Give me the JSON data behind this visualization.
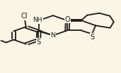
{
  "bg_color": "#faf5e4",
  "bond_color": "#1a1a1a",
  "bond_width": 1.3,
  "figsize": [
    1.71,
    1.04
  ],
  "dpi": 100,
  "xlim": [
    0.0,
    1.0
  ],
  "ylim": [
    0.0,
    1.0
  ]
}
